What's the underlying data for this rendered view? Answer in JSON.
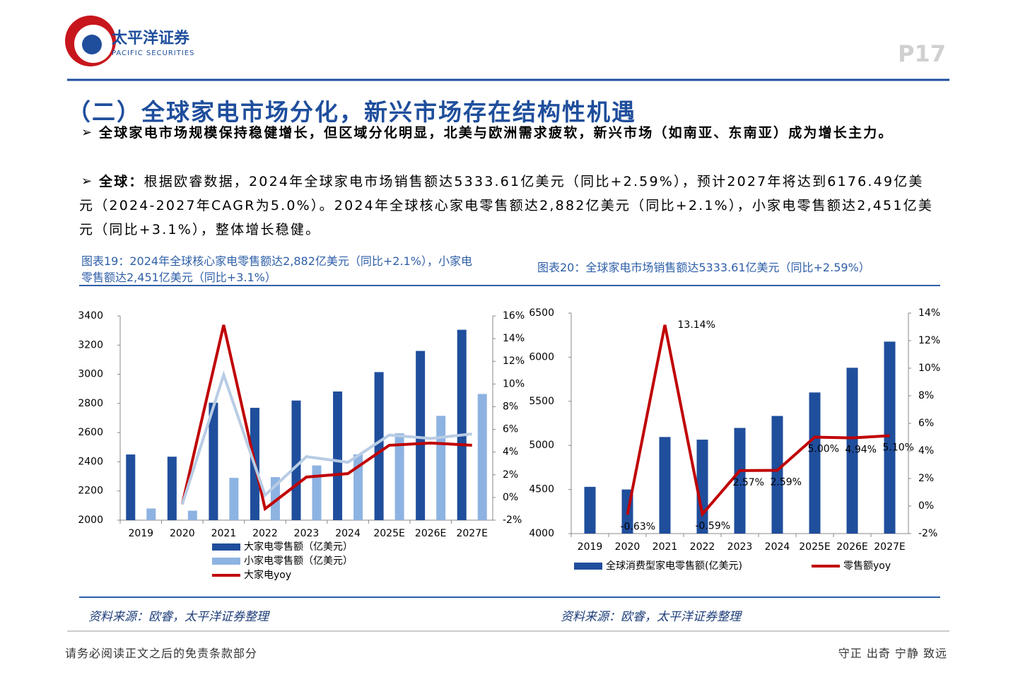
{
  "header": {
    "brand": "太平洋证券",
    "brand_en": "PACIFIC SECURITIES",
    "page": "P17"
  },
  "section": {
    "title": "（二）全球家电市场分化，新兴市场存在结构性机遇",
    "bullets": [
      {
        "text": "全球家电市场规模保持稳健增长，但区域分化明显，北美与欧洲需求疲软，新兴市场（如南亚、东南亚）成为增长主力。"
      },
      {
        "lead": "全球：",
        "text": "根据欧睿数据，2024年全球家电市场销售额达5333.61亿美元（同比+2.59%），预计2027年将达到6176.49亿美元（2024-2027年CAGR为5.0%）。2024年全球核心家电零售额达2,882亿美元（同比+2.1%），小家电零售额达2,451亿美元（同比+3.1%），整体增长稳健。"
      }
    ]
  },
  "chart_data": [
    {
      "type": "bar",
      "title": "图表19：2024年全球核心家电零售额达2,882亿美元（同比+2.1%），小家电零售额达2,451亿美元（同比+3.1%）",
      "source": "资料来源：欧睿，太平洋证券整理",
      "categories": [
        "2019",
        "2020",
        "2021",
        "2022",
        "2023",
        "2024",
        "2025E",
        "2026E",
        "2027E"
      ],
      "series": [
        {
          "name": "大家电零售额（亿美元）",
          "type": "bar",
          "color": "#1f4e9c",
          "values": [
            2450,
            2435,
            2805,
            2770,
            2820,
            2882,
            3015,
            3160,
            3305
          ]
        },
        {
          "name": "小家电零售额（亿美元）",
          "type": "bar",
          "color": "#8db3e2",
          "values": [
            2080,
            2065,
            2290,
            2295,
            2375,
            2451,
            2595,
            2715,
            2865
          ]
        },
        {
          "name": "大家电yoy",
          "type": "line",
          "axis": "y2",
          "color": "#c00000",
          "values": [
            null,
            -0.6,
            15.2,
            -1.0,
            1.8,
            2.1,
            4.6,
            4.8,
            4.6
          ]
        },
        {
          "type": "line",
          "axis": "y2",
          "color": "#b8cce4",
          "values": [
            null,
            -0.6,
            10.8,
            0.2,
            3.6,
            3.1,
            5.5,
            5.2,
            5.6
          ]
        }
      ],
      "ylim": [
        2000,
        3400
      ],
      "yticks": [
        2000,
        2200,
        2400,
        2600,
        2800,
        3000,
        3200,
        3400
      ],
      "y2lim": [
        -2,
        16
      ],
      "y2ticks": [
        {
          "value": -2,
          "label": "-2%"
        },
        {
          "value": 0,
          "label": "0%"
        },
        {
          "value": 2,
          "label": "2%"
        },
        {
          "value": 4,
          "label": "4%"
        },
        {
          "value": 6,
          "label": "6%"
        },
        {
          "value": 8,
          "label": "8%"
        },
        {
          "value": 10,
          "label": "10%"
        },
        {
          "value": 12,
          "label": "12%"
        },
        {
          "value": 14,
          "label": "14%"
        },
        {
          "value": 16,
          "label": "16%"
        }
      ]
    },
    {
      "type": "bar",
      "title": "图表20：全球家电市场销售额达5333.61亿美元（同比+2.59%）",
      "source": "资料来源：欧睿，太平洋证券整理",
      "categories": [
        "2019",
        "2020",
        "2021",
        "2022",
        "2023",
        "2024",
        "2025E",
        "2026E",
        "2027E"
      ],
      "series": [
        {
          "name": "全球消费型家电零售额(亿美元)",
          "type": "bar",
          "color": "#1f4e9c",
          "values": [
            4530,
            4500,
            5095,
            5065,
            5198,
            5333.61,
            5600,
            5880,
            6176.49
          ]
        },
        {
          "name": "零售额yoy",
          "type": "line",
          "axis": "y2",
          "color": "#c00000",
          "values": [
            null,
            -0.63,
            13.14,
            -0.59,
            2.57,
            2.59,
            5.0,
            4.94,
            5.1
          ],
          "value_labels": [
            null,
            "-0.63%",
            "13.14%",
            "-0.59%",
            "2.57%",
            "2.59%",
            "5.00%",
            "4.94%",
            "5.10%"
          ]
        }
      ],
      "ylim": [
        4000,
        6500
      ],
      "yticks": [
        4000,
        4500,
        5000,
        5500,
        6000,
        6500
      ],
      "y2lim": [
        -2,
        14
      ],
      "y2ticks": [
        {
          "value": -2,
          "label": "-2%"
        },
        {
          "value": 0,
          "label": "0%"
        },
        {
          "value": 2,
          "label": "2%"
        },
        {
          "value": 4,
          "label": "4%"
        },
        {
          "value": 6,
          "label": "6%"
        },
        {
          "value": 8,
          "label": "8%"
        },
        {
          "value": 10,
          "label": "10%"
        },
        {
          "value": 12,
          "label": "12%"
        },
        {
          "value": 14,
          "label": "14%"
        }
      ]
    }
  ],
  "footer": {
    "left": "请务必阅读正文之后的免责条款部分",
    "right": "守正 出奇 宁静 致远"
  }
}
